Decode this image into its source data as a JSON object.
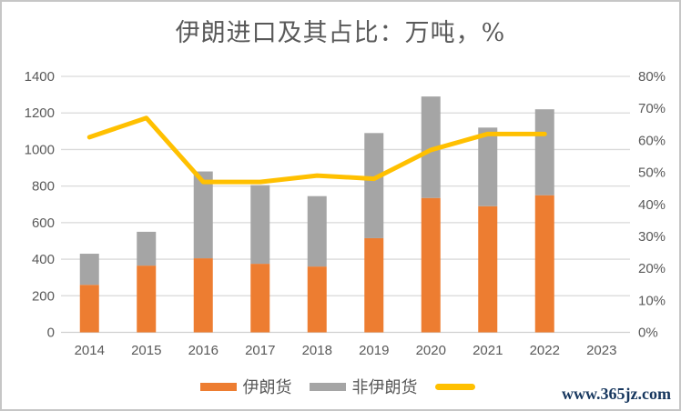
{
  "title": "伊朗进口及其占比：万吨，%",
  "watermark": "www.365jz.com",
  "colors": {
    "iran_bar": "#ED7D31",
    "non_iran_bar": "#A5A5A5",
    "share_line": "#FFC000",
    "gridline": "#D9D9D9",
    "axis_line": "#D0D0D0",
    "axis_text": "#595959",
    "title_text": "#595959",
    "legend_text": "#595959",
    "watermark_text": "#17375E",
    "frame_border": "#C6C6C6"
  },
  "legend": {
    "items": [
      {
        "label": "伊朗货",
        "swatch": "bar",
        "color": "#ED7D31"
      },
      {
        "label": "非伊朗货",
        "swatch": "bar",
        "color": "#A5A5A5"
      },
      {
        "label": "",
        "swatch": "line",
        "color": "#FFC000"
      }
    ]
  },
  "chart_data": {
    "type": "bar",
    "subtype": "stacked-bars-with-secondary-axis-line",
    "title": "伊朗进口及其占比：万吨，%",
    "categories": [
      "2014",
      "2015",
      "2016",
      "2017",
      "2018",
      "2019",
      "2020",
      "2021",
      "2022",
      "2023"
    ],
    "series": [
      {
        "name": "伊朗货",
        "type": "bar",
        "stack": "imports",
        "axis": "left",
        "color": "#ED7D31",
        "values": [
          260,
          365,
          405,
          375,
          360,
          515,
          735,
          690,
          750,
          null
        ]
      },
      {
        "name": "非伊朗货",
        "type": "bar",
        "stack": "imports",
        "axis": "left",
        "color": "#A5A5A5",
        "values": [
          170,
          185,
          475,
          430,
          385,
          575,
          555,
          430,
          470,
          null
        ]
      },
      {
        "name": "",
        "type": "line",
        "axis": "right",
        "color": "#FFC000",
        "values": [
          61,
          67,
          47,
          47,
          49,
          48,
          57,
          62,
          62,
          null
        ]
      }
    ],
    "y_left": {
      "min": 0,
      "max": 1400,
      "step": 200
    },
    "y_right": {
      "min": 0,
      "max": 80,
      "step": 10,
      "suffix": "%"
    },
    "grid": true,
    "legend_position": "bottom"
  }
}
